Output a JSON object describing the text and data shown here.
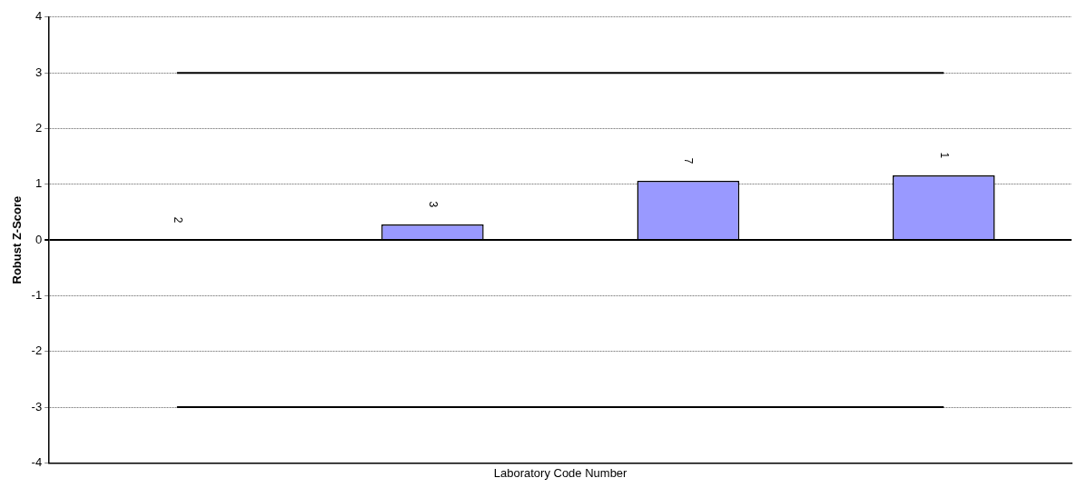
{
  "chart_data": {
    "type": "bar",
    "xlabel": "Laboratory Code Number",
    "ylabel": "Robust Z-Score",
    "categories": [
      "2",
      "3",
      "7",
      "1"
    ],
    "values": [
      0,
      0.28,
      1.06,
      1.16
    ],
    "color": "#9999ff",
    "ylim": [
      -4,
      4
    ],
    "yticks": [
      -4,
      -3,
      -2,
      -1,
      0,
      1,
      2,
      3,
      4
    ],
    "grid": "y",
    "tick_labels": "y",
    "ref_lines": [
      {
        "axis": "y",
        "value": 3,
        "color": "#000000"
      },
      {
        "axis": "y",
        "value": -3,
        "color": "#000000"
      }
    ]
  }
}
